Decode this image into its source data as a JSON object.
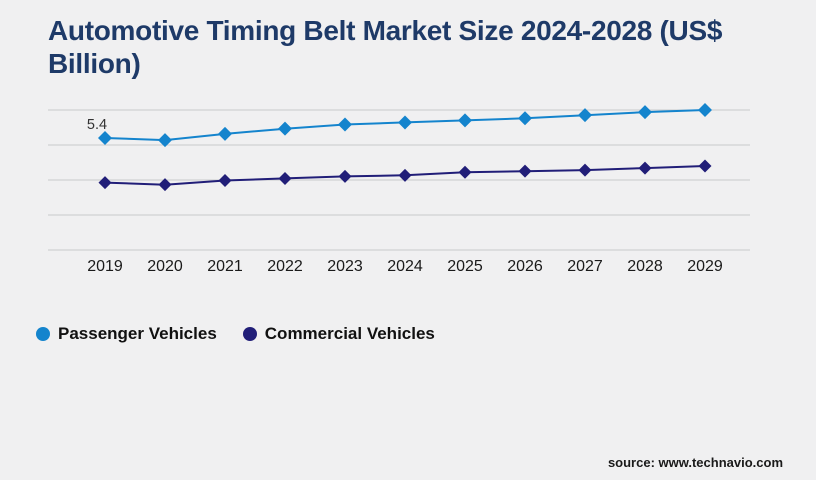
{
  "page": {
    "title_line1": "Automotive Timing Belt Market Size 2024-2028 (US$",
    "title_line2": "Billion)",
    "source": "source: www.technavio.com",
    "background_color": "#f0f0f1",
    "title_color": "#1e3a68",
    "gridline_color": "#c9cacb",
    "tick_color": "#1a1a1a"
  },
  "chart_data": {
    "type": "line",
    "title": "Automotive Timing Belt Market Size 2024-2028 (US$ Billion)",
    "categories": [
      "2019",
      "2020",
      "2021",
      "2022",
      "2023",
      "2024",
      "2025",
      "2026",
      "2027",
      "2028",
      "2029"
    ],
    "series": [
      {
        "name": "Passenger Vehicles",
        "color": "#1484cd",
        "marker": "diamond",
        "values": [
          5.4,
          5.3,
          5.6,
          5.85,
          6.05,
          6.15,
          6.25,
          6.35,
          6.5,
          6.65,
          6.75
        ]
      },
      {
        "name": "Commercial Vehicles",
        "color": "#211e78",
        "marker": "diamond",
        "values": [
          3.25,
          3.15,
          3.35,
          3.45,
          3.55,
          3.6,
          3.75,
          3.8,
          3.85,
          3.95,
          4.05
        ]
      }
    ],
    "data_labels": [
      {
        "series": "Passenger Vehicles",
        "category": "2019",
        "text": "5.4"
      }
    ],
    "ylim": [
      0,
      6.75
    ],
    "xlabel": "",
    "ylabel": "",
    "grid": true,
    "y_axis_labels_visible": false,
    "legend_position": "bottom"
  }
}
